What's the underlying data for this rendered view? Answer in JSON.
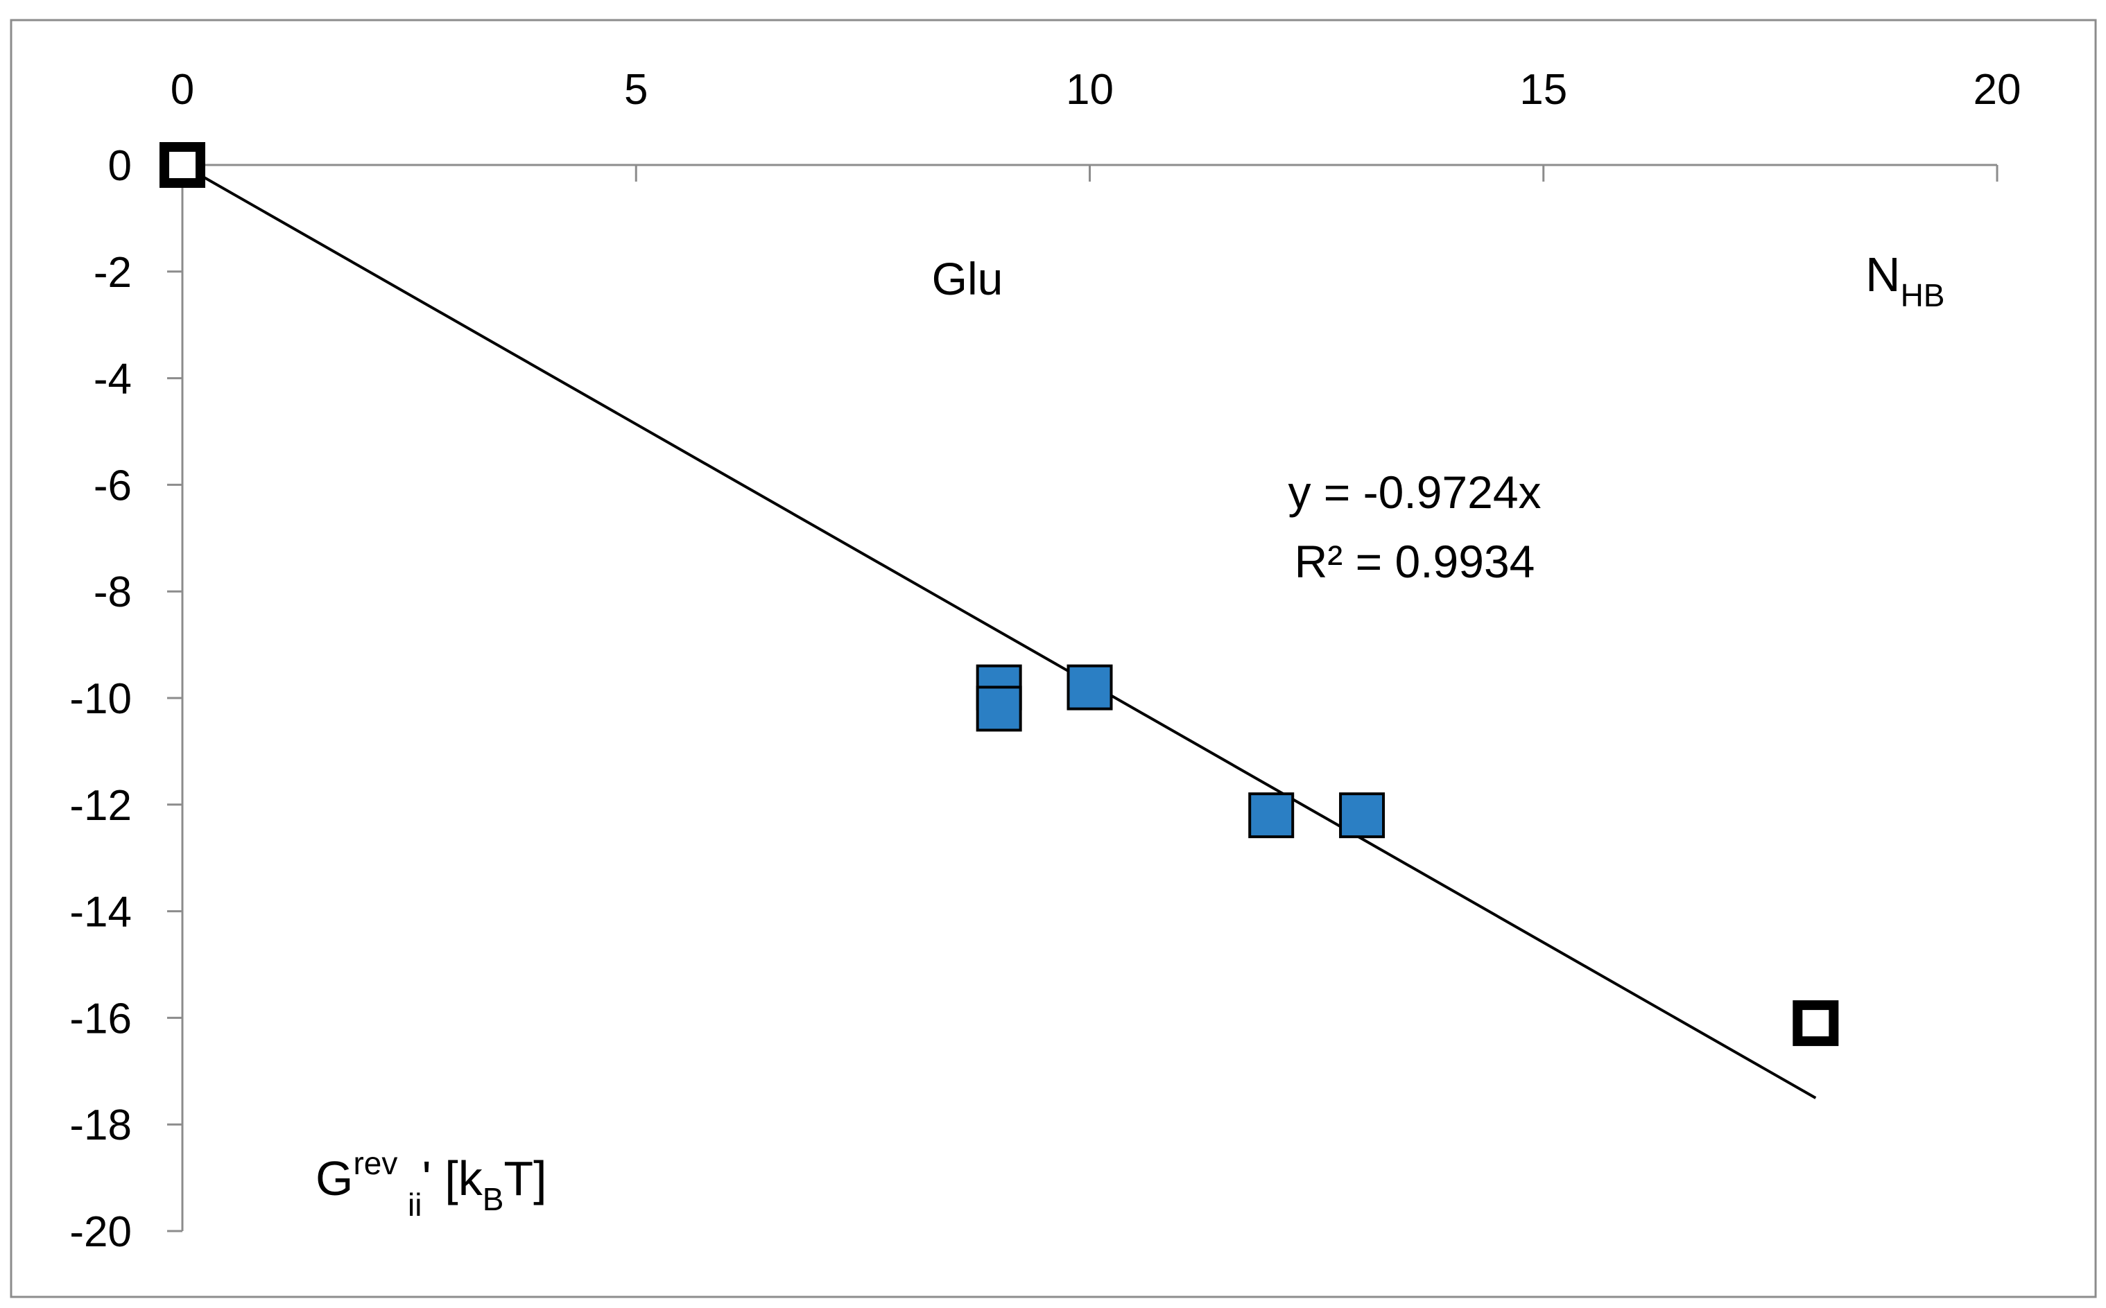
{
  "chart_data": {
    "type": "scatter",
    "title": "",
    "xlabel": {
      "main": "N",
      "sub": "HB"
    },
    "ylabel": {
      "main": "G",
      "sup": "rev",
      "sub": "ii",
      "mid": "' [k",
      "sub2": "B",
      "end": "T]"
    },
    "xlim": [
      0,
      20
    ],
    "ylim": [
      -20,
      0
    ],
    "x_ticks": [
      0,
      5,
      10,
      15,
      20
    ],
    "y_ticks": [
      0,
      -2,
      -4,
      -6,
      -8,
      -10,
      -12,
      -14,
      -16,
      -18,
      -20
    ],
    "x_axis_position": "top",
    "grid": false,
    "legend": "none",
    "annotation_label": "Glu",
    "series": [
      {
        "marker": "square-filled",
        "color": "#2b7fc4",
        "points": [
          {
            "x": 9,
            "y": -9.8
          },
          {
            "x": 9,
            "y": -10.2
          },
          {
            "x": 10,
            "y": -9.8
          },
          {
            "x": 12,
            "y": -12.2
          },
          {
            "x": 13,
            "y": -12.2
          }
        ]
      },
      {
        "marker": "square-hollow",
        "color": "#000000",
        "points": [
          {
            "x": 0,
            "y": 0
          },
          {
            "x": 18,
            "y": -16.1
          }
        ]
      }
    ],
    "trendline": {
      "slope": -0.9724,
      "intercept": 0,
      "x_range": [
        0,
        18
      ],
      "equation": "y = -0.9724x",
      "r2": "R² = 0.9934"
    }
  }
}
